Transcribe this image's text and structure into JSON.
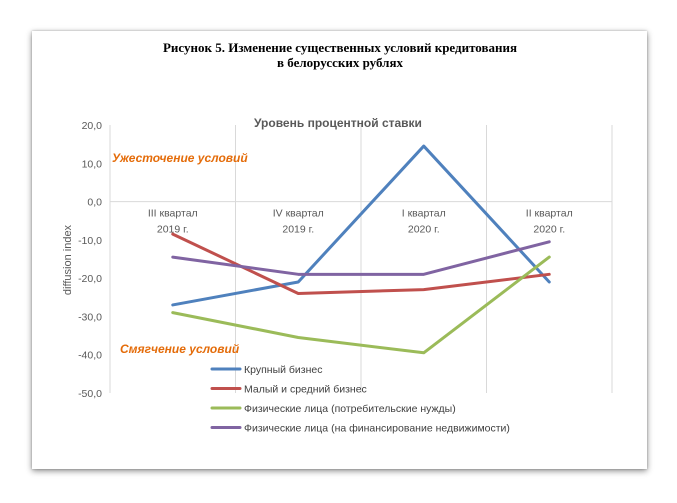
{
  "figure": {
    "title_line1": "Рисунок 5. Изменение существенных условий кредитования",
    "title_line2": "в белорусских рублях"
  },
  "chart_data": {
    "type": "line",
    "title": "Уровень процентной ставки",
    "ylabel": "diffusion index",
    "xlabel": "",
    "ylim": [
      -50,
      20
    ],
    "yticks": [
      "20,0",
      "10,0",
      "0,0",
      "-10,0",
      "-20,0",
      "-30,0",
      "-40,0",
      "-50,0"
    ],
    "categories": [
      [
        "III квартал",
        "2019 г."
      ],
      [
        "IV квартал",
        "2019 г."
      ],
      [
        "I квартал",
        "2020 г."
      ],
      [
        "II квартал",
        "2020 г."
      ]
    ],
    "grid": "vertical",
    "legend_position": "bottom-center",
    "annotations": {
      "tightening": "Ужесточение условий",
      "easing": "Смягчение условий"
    },
    "series": [
      {
        "name": "Крупный бизнес",
        "color": "#4f81bd",
        "values": [
          -27,
          -21,
          14.5,
          -21
        ]
      },
      {
        "name": "Малый и средний бизнес",
        "color": "#c0504d",
        "values": [
          -8.5,
          -24,
          -23,
          -19
        ]
      },
      {
        "name": "Физические лица (потребительские нужды)",
        "color": "#9bbb59",
        "values": [
          -29,
          -35.5,
          -39.5,
          -14.5
        ]
      },
      {
        "name": "Физические лица (на финансирование недвижимости)",
        "color": "#8064a2",
        "values": [
          -14.5,
          -19,
          -19,
          -10.5
        ]
      }
    ]
  }
}
